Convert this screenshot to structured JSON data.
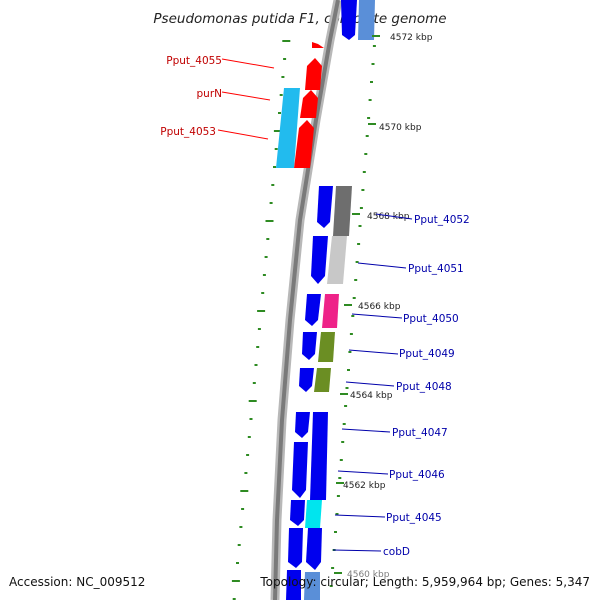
{
  "title": "Pseudomonas putida F1, complete genome",
  "footer": {
    "accession": "Accession: NC_009512",
    "topology": "Topology: circular; Length: 5,959,964 bp; Genes: 5,347"
  },
  "ticks": [
    {
      "label": "4572 kbp"
    },
    {
      "label": "4570 kbp"
    },
    {
      "label": "4568 kbp"
    },
    {
      "label": "4566 kbp"
    },
    {
      "label": "4564 kbp"
    },
    {
      "label": "4562 kbp"
    },
    {
      "label": "4560 kbp"
    }
  ],
  "genes": [
    {
      "label": "Pput_4055",
      "color": "#ff0000",
      "strand": "+"
    },
    {
      "label": "purN",
      "color": "#ff0000",
      "strand": "+"
    },
    {
      "label": "Pput_4053",
      "color": "#ff0000",
      "strand": "+"
    },
    {
      "label": "Pput_4052",
      "color": "#0000ee",
      "strand": "-"
    },
    {
      "label": "Pput_4051",
      "color": "#0000ee",
      "strand": "-"
    },
    {
      "label": "Pput_4050",
      "color": "#0000ee",
      "strand": "-"
    },
    {
      "label": "Pput_4049",
      "color": "#0000ee",
      "strand": "-"
    },
    {
      "label": "Pput_4048",
      "color": "#0000ee",
      "strand": "-"
    },
    {
      "label": "Pput_4047",
      "color": "#0000ee",
      "strand": "-"
    },
    {
      "label": "Pput_4046",
      "color": "#0000ee",
      "strand": "-"
    },
    {
      "label": "Pput_4045",
      "color": "#0000ee",
      "strand": "-"
    },
    {
      "label": "cobD",
      "color": "#0000ee",
      "strand": "-"
    }
  ],
  "colors": {
    "backbone": "#9a9a9a",
    "cog_red": "#ff0000",
    "cog_cyan": "#22bbee",
    "cog_gray_dark": "#6e6e6e",
    "cog_gray_light": "#c8c8c8",
    "cog_magenta": "#ee2288",
    "cog_olive": "#6b8e23",
    "cog_aqua": "#00e5ee",
    "cds_blue": "#0000ee",
    "dotted_green": "#2e8b22"
  }
}
